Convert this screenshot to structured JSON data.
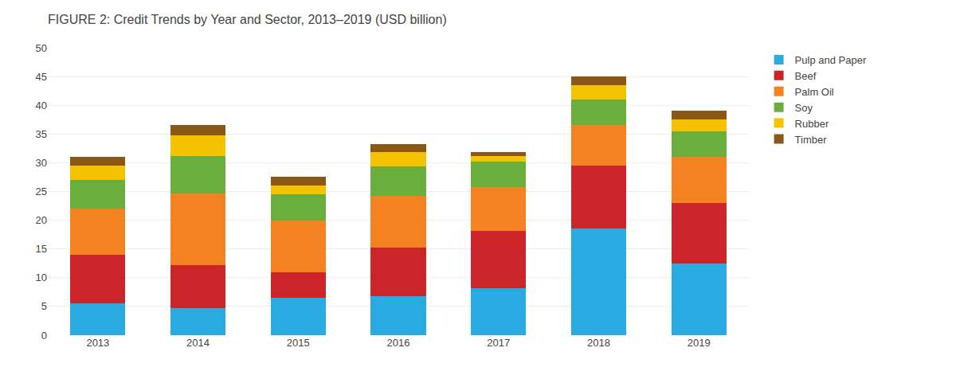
{
  "chart_data": {
    "type": "bar",
    "stacked": true,
    "title": "FIGURE 2: Credit Trends by Year and Sector, 2013–2019 (USD billion)",
    "categories": [
      "2013",
      "2014",
      "2015",
      "2016",
      "2017",
      "2018",
      "2019"
    ],
    "series": [
      {
        "name": "Pulp and Paper",
        "color": "#29ABE2",
        "values": [
          5.5,
          4.7,
          6.5,
          6.8,
          8.2,
          18.5,
          12.5
        ]
      },
      {
        "name": "Beef",
        "color": "#CC2529",
        "values": [
          8.5,
          7.5,
          4.5,
          8.5,
          10.0,
          11.0,
          10.5
        ]
      },
      {
        "name": "Palm Oil",
        "color": "#F58220",
        "values": [
          8.0,
          12.5,
          9.0,
          9.0,
          7.5,
          7.0,
          8.0
        ]
      },
      {
        "name": "Soy",
        "color": "#6AAF3D",
        "values": [
          5.0,
          6.5,
          4.5,
          5.0,
          4.5,
          4.5,
          4.5
        ]
      },
      {
        "name": "Rubber",
        "color": "#F5C200",
        "values": [
          2.5,
          3.5,
          1.5,
          2.5,
          1.0,
          2.5,
          2.0
        ]
      },
      {
        "name": "Timber",
        "color": "#8B5714",
        "values": [
          1.5,
          1.8,
          1.5,
          1.5,
          0.7,
          1.5,
          1.5
        ]
      }
    ],
    "ylim": [
      0,
      50
    ],
    "yticks": [
      0,
      5,
      10,
      15,
      20,
      25,
      30,
      35,
      40,
      45,
      50
    ],
    "grid": true,
    "legend": "right"
  }
}
